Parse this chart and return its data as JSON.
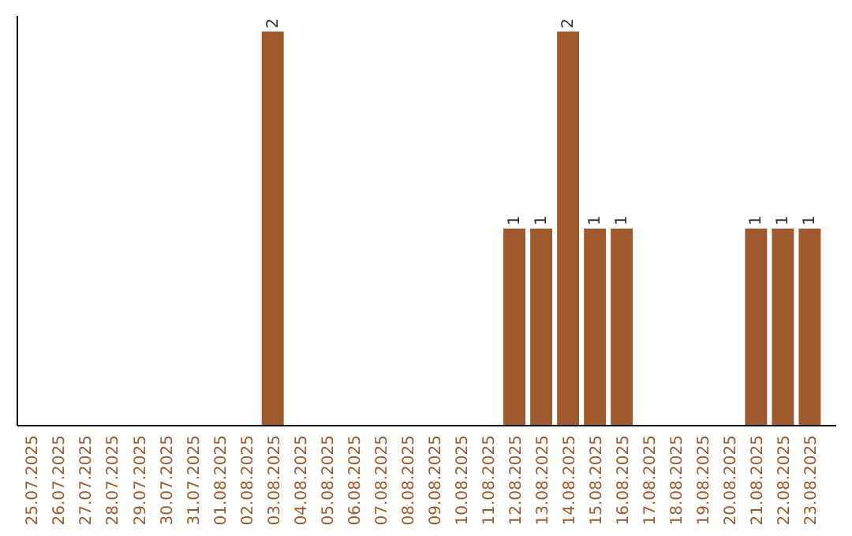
{
  "chart_data": {
    "type": "bar",
    "categories": [
      "25.07.2025",
      "26.07.2025",
      "27.07.2025",
      "28.07.2025",
      "29.07.2025",
      "30.07.2025",
      "31.07.2025",
      "01.08.2025",
      "02.08.2025",
      "03.08.2025",
      "04.08.2025",
      "05.08.2025",
      "06.08.2025",
      "07.08.2025",
      "08.08.2025",
      "09.08.2025",
      "10.08.2025",
      "11.08.2025",
      "12.08.2025",
      "13.08.2025",
      "14.08.2025",
      "15.08.2025",
      "16.08.2025",
      "17.08.2025",
      "18.08.2025",
      "19.08.2025",
      "20.08.2025",
      "21.08.2025",
      "22.08.2025",
      "23.08.2025"
    ],
    "values": [
      0,
      0,
      0,
      0,
      0,
      0,
      0,
      0,
      0,
      2,
      0,
      0,
      0,
      0,
      0,
      0,
      0,
      0,
      1,
      1,
      2,
      1,
      1,
      0,
      0,
      0,
      0,
      1,
      1,
      1
    ],
    "value_labels": [
      null,
      null,
      null,
      null,
      null,
      null,
      null,
      null,
      null,
      "2",
      null,
      null,
      null,
      null,
      null,
      null,
      null,
      null,
      "1",
      "1",
      "2",
      "1",
      "1",
      null,
      null,
      null,
      null,
      "1",
      "1",
      "1"
    ],
    "color": "#a0592a",
    "ylim": [
      0,
      2
    ],
    "tick_labels": "x"
  }
}
